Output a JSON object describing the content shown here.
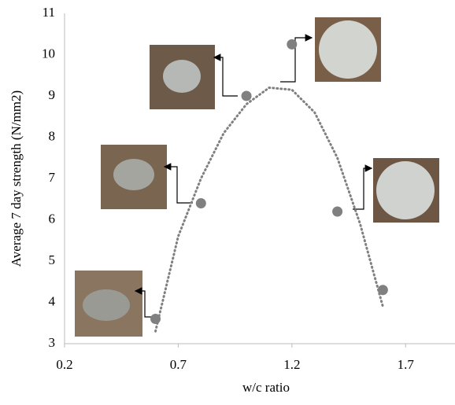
{
  "chart_data": {
    "type": "scatter",
    "x_label": "w/c ratio",
    "y_label": "Average 7 day strength (N/mm2)",
    "xlim": [
      0.2,
      1.9
    ],
    "ylim": [
      3,
      11
    ],
    "xticks": [
      0.2,
      0.7,
      1.2,
      1.7
    ],
    "yticks": [
      3,
      4,
      5,
      6,
      7,
      8,
      9,
      10,
      11
    ],
    "series": [
      {
        "color": "#808080",
        "x": [
          0.6,
          0.8,
          1.0,
          1.2,
          1.4,
          1.6
        ],
        "values": [
          3.6,
          6.4,
          9.0,
          10.25,
          6.2,
          4.3
        ]
      }
    ],
    "trendline": {
      "color": "#808080",
      "x": [
        0.6,
        0.7,
        0.8,
        0.9,
        1.0,
        1.1,
        1.2,
        1.3,
        1.4,
        1.5,
        1.6
      ],
      "values": [
        3.3,
        5.6,
        7.0,
        8.1,
        8.8,
        9.2,
        9.15,
        8.6,
        7.5,
        5.9,
        3.9
      ]
    }
  }
}
